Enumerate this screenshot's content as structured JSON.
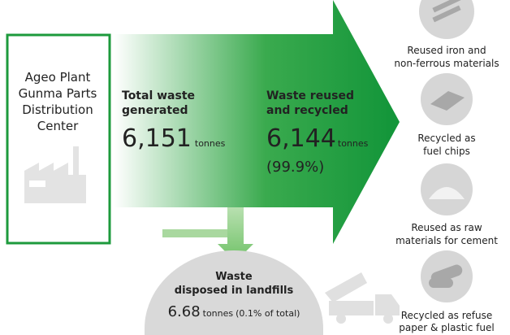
{
  "source": {
    "label_lines": [
      "Ageo Plant",
      "Gunma Parts",
      "Distribution",
      "Center"
    ]
  },
  "total": {
    "label_lines": [
      "Total waste",
      "generated"
    ],
    "value": "6,151",
    "unit": "tonnes"
  },
  "recycled": {
    "label_lines": [
      "Waste reused",
      "and recycled"
    ],
    "value": "6,144",
    "unit": "tonnes",
    "share": "(99.9%)"
  },
  "landfill": {
    "label_lines": [
      "Waste",
      "disposed in landfills"
    ],
    "value": "6.68",
    "unit": "tonnes",
    "share": "(0.1% of total)"
  },
  "outputs": [
    {
      "label_lines": [
        "Reused iron and",
        "non-ferrous materials"
      ]
    },
    {
      "label_lines": [
        "Recycled as",
        "fuel chips"
      ]
    },
    {
      "label_lines": [
        "Reused as raw",
        "materials for cement"
      ]
    },
    {
      "label_lines": [
        "Recycled as refuse",
        "paper & plastic fuel"
      ]
    }
  ]
}
